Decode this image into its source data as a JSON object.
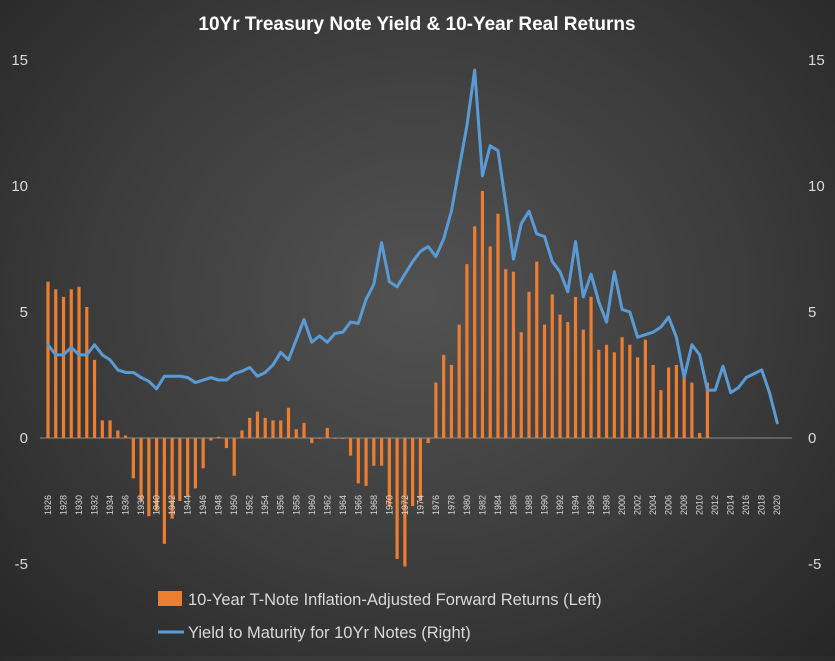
{
  "chart_data": {
    "type": "bar+line",
    "title": "10Yr Treasury Note Yield & 10-Year  Real Returns",
    "left_axis": {
      "ticks": [
        15,
        10,
        5,
        0,
        -5
      ],
      "ylim": [
        -5,
        15
      ]
    },
    "right_axis": {
      "ticks": [
        15,
        10,
        5,
        0,
        -5
      ],
      "ylim": [
        -5,
        15
      ]
    },
    "years": [
      1926,
      1927,
      1928,
      1929,
      1930,
      1931,
      1932,
      1933,
      1934,
      1935,
      1936,
      1937,
      1938,
      1939,
      1940,
      1941,
      1942,
      1943,
      1944,
      1945,
      1946,
      1947,
      1948,
      1949,
      1950,
      1951,
      1952,
      1953,
      1954,
      1955,
      1956,
      1957,
      1958,
      1959,
      1960,
      1961,
      1962,
      1963,
      1964,
      1965,
      1966,
      1967,
      1968,
      1969,
      1970,
      1971,
      1972,
      1973,
      1974,
      1975,
      1976,
      1977,
      1978,
      1979,
      1980,
      1981,
      1982,
      1983,
      1984,
      1985,
      1986,
      1987,
      1988,
      1989,
      1990,
      1991,
      1992,
      1993,
      1994,
      1995,
      1996,
      1997,
      1998,
      1999,
      2000,
      2001,
      2002,
      2003,
      2004,
      2005,
      2006,
      2007,
      2008,
      2009,
      2010,
      2011,
      2012,
      2013,
      2014,
      2015,
      2016,
      2017,
      2018,
      2019,
      2020,
      2021
    ],
    "x_tick_labels": [
      "1926",
      "1928",
      "1930",
      "1932",
      "1934",
      "1936",
      "1938",
      "1940",
      "1942",
      "1944",
      "1946",
      "1948",
      "1950",
      "1952",
      "1954",
      "1956",
      "1958",
      "1960",
      "1962",
      "1964",
      "1966",
      "1968",
      "1970",
      "1972",
      "1974",
      "1976",
      "1978",
      "1980",
      "1982",
      "1984",
      "1986",
      "1988",
      "1990",
      "1992",
      "1994",
      "1996",
      "1998",
      "2000",
      "2002",
      "2004",
      "2006",
      "2008",
      "2010",
      "2012",
      "2014",
      "2016",
      "2018",
      "2020"
    ],
    "series": [
      {
        "name": "10-Year T-Note Inflation-Adjusted Forward Returns (Left)",
        "type": "bar",
        "axis": "left",
        "color": "#ed7d31",
        "values": [
          6.2,
          5.9,
          5.6,
          5.9,
          6.0,
          5.2,
          3.1,
          0.7,
          0.7,
          0.3,
          0.1,
          -1.6,
          -2.5,
          -3.1,
          -2.9,
          -4.2,
          -3.2,
          -2.5,
          -2.3,
          -2.0,
          -1.2,
          -0.1,
          0.05,
          -0.4,
          -1.5,
          0.3,
          0.8,
          1.05,
          0.8,
          0.7,
          0.7,
          1.2,
          0.35,
          0.6,
          -0.2,
          0.0,
          0.4,
          0.0,
          0.0,
          -0.7,
          -1.8,
          -1.9,
          -1.1,
          -1.1,
          -2.7,
          -4.8,
          -5.1,
          -2.7,
          -2.5,
          -0.2,
          2.2,
          3.3,
          2.9,
          4.5,
          6.9,
          8.4,
          9.8,
          7.6,
          8.9,
          6.7,
          6.6,
          4.2,
          5.8,
          7.0,
          4.5,
          5.7,
          4.9,
          4.6,
          5.6,
          4.3,
          5.6,
          3.5,
          3.7,
          3.4,
          4.0,
          3.7,
          3.2,
          3.9,
          2.9,
          1.9,
          2.8,
          2.9,
          2.7,
          2.2,
          0.2,
          2.2,
          null,
          null,
          null,
          null,
          null,
          null,
          null,
          null,
          null,
          null
        ]
      },
      {
        "name": "Yield to Maturity for 10Yr Notes (Right)",
        "type": "line",
        "axis": "right",
        "color": "#5b9bd5",
        "values": [
          3.7,
          3.3,
          3.3,
          3.6,
          3.3,
          3.3,
          3.7,
          3.3,
          3.1,
          2.7,
          2.6,
          2.6,
          2.4,
          2.25,
          1.95,
          2.45,
          2.45,
          2.45,
          2.4,
          2.2,
          2.3,
          2.4,
          2.3,
          2.3,
          2.55,
          2.65,
          2.8,
          2.45,
          2.6,
          2.9,
          3.4,
          3.1,
          3.9,
          4.7,
          3.8,
          4.05,
          3.8,
          4.15,
          4.2,
          4.6,
          4.55,
          5.5,
          6.1,
          7.75,
          6.2,
          6.0,
          6.5,
          7.0,
          7.4,
          7.6,
          7.2,
          7.9,
          9.0,
          10.7,
          12.4,
          14.6,
          10.4,
          11.6,
          11.4,
          9.3,
          7.1,
          8.5,
          9.0,
          8.1,
          8.0,
          7.0,
          6.6,
          5.8,
          7.8,
          5.6,
          6.5,
          5.4,
          4.6,
          6.6,
          5.1,
          5.0,
          4.0,
          4.1,
          4.2,
          4.4,
          4.8,
          4.0,
          2.4,
          3.7,
          3.3,
          1.9,
          1.9,
          2.85,
          1.8,
          2.0,
          2.4,
          2.55,
          2.7,
          1.8,
          0.6,
          null
        ]
      }
    ],
    "legend": {
      "position": "bottom"
    }
  }
}
